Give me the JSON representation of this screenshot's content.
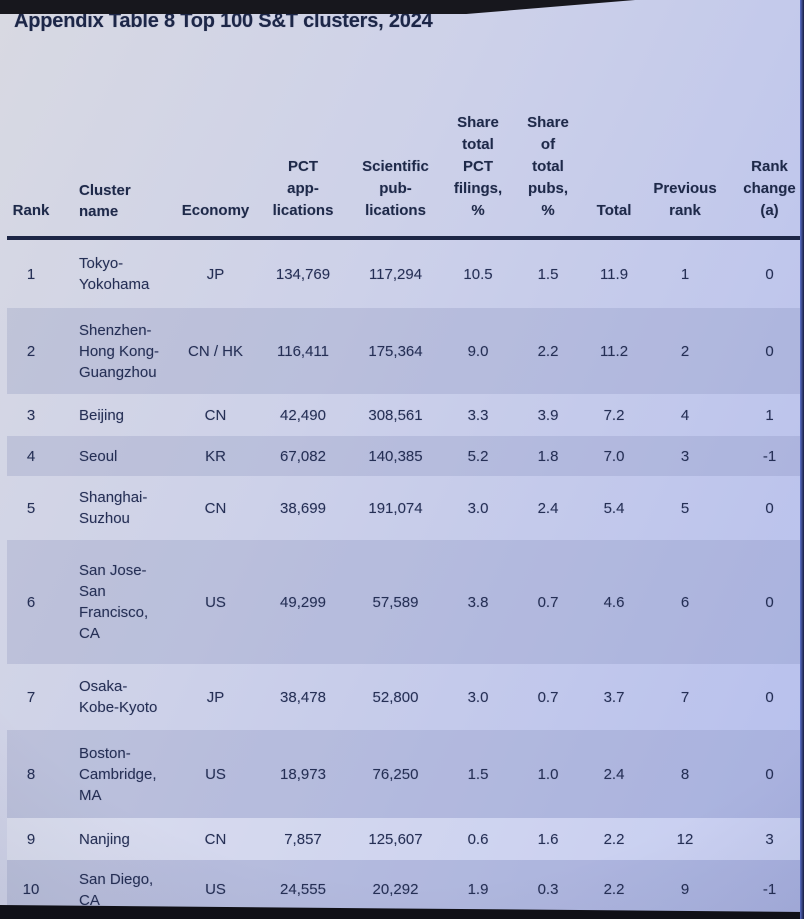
{
  "title": "Appendix Table 8 Top 100 S&T clusters, 2024",
  "table": {
    "columns": [
      {
        "key": "rank",
        "label": "Rank"
      },
      {
        "key": "cluster",
        "label": "Cluster\nname"
      },
      {
        "key": "economy",
        "label": "Economy"
      },
      {
        "key": "pct",
        "label": "PCT\napp-\nlications"
      },
      {
        "key": "pubs",
        "label": "Scientific\npub-\nlications"
      },
      {
        "key": "share_pct",
        "label": "Share\ntotal\nPCT\nfilings,\n%"
      },
      {
        "key": "share_pubs",
        "label": "Share\nof\ntotal\npubs,\n%"
      },
      {
        "key": "total",
        "label": "Total"
      },
      {
        "key": "prev",
        "label": "Previous\nrank"
      },
      {
        "key": "change",
        "label": "Rank\nchange\n(a)"
      }
    ],
    "rows": [
      {
        "rank": "1",
        "cluster": "Tokyo-\nYokohama",
        "economy": "JP",
        "pct": "134,769",
        "pubs": "117,294",
        "share_pct": "10.5",
        "share_pubs": "1.5",
        "total": "11.9",
        "prev": "1",
        "change": "0"
      },
      {
        "rank": "2",
        "cluster": "Shenzhen-\nHong Kong-\nGuangzhou",
        "economy": "CN / HK",
        "pct": "116,411",
        "pubs": "175,364",
        "share_pct": "9.0",
        "share_pubs": "2.2",
        "total": "11.2",
        "prev": "2",
        "change": "0"
      },
      {
        "rank": "3",
        "cluster": "Beijing",
        "economy": "CN",
        "pct": "42,490",
        "pubs": "308,561",
        "share_pct": "3.3",
        "share_pubs": "3.9",
        "total": "7.2",
        "prev": "4",
        "change": "1"
      },
      {
        "rank": "4",
        "cluster": "Seoul",
        "economy": "KR",
        "pct": "67,082",
        "pubs": "140,385",
        "share_pct": "5.2",
        "share_pubs": "1.8",
        "total": "7.0",
        "prev": "3",
        "change": "-1"
      },
      {
        "rank": "5",
        "cluster": "Shanghai-\nSuzhou",
        "economy": "CN",
        "pct": "38,699",
        "pubs": "191,074",
        "share_pct": "3.0",
        "share_pubs": "2.4",
        "total": "5.4",
        "prev": "5",
        "change": "0"
      },
      {
        "rank": "6",
        "cluster": "San Jose-\nSan\nFrancisco,\nCA",
        "economy": "US",
        "pct": "49,299",
        "pubs": "57,589",
        "share_pct": "3.8",
        "share_pubs": "0.7",
        "total": "4.6",
        "prev": "6",
        "change": "0"
      },
      {
        "rank": "7",
        "cluster": "Osaka-\nKobe-Kyoto",
        "economy": "JP",
        "pct": "38,478",
        "pubs": "52,800",
        "share_pct": "3.0",
        "share_pubs": "0.7",
        "total": "3.7",
        "prev": "7",
        "change": "0"
      },
      {
        "rank": "8",
        "cluster": "Boston-\nCambridge,\nMA",
        "economy": "US",
        "pct": "18,973",
        "pubs": "76,250",
        "share_pct": "1.5",
        "share_pubs": "1.0",
        "total": "2.4",
        "prev": "8",
        "change": "0"
      },
      {
        "rank": "9",
        "cluster": "Nanjing",
        "economy": "CN",
        "pct": "7,857",
        "pubs": "125,607",
        "share_pct": "0.6",
        "share_pubs": "1.6",
        "total": "2.2",
        "prev": "12",
        "change": "3"
      },
      {
        "rank": "10",
        "cluster": "San Diego,\nCA",
        "economy": "US",
        "pct": "24,555",
        "pubs": "20,292",
        "share_pct": "1.9",
        "share_pubs": "0.3",
        "total": "2.2",
        "prev": "9",
        "change": "-1"
      }
    ]
  },
  "colors": {
    "text": "#252f55",
    "title_text": "#1c2647",
    "header_rule": "#1d2646",
    "background_light": "#d8d9e2",
    "background_blue": "#b6bfee",
    "row_shade": "rgba(108,119,170,0.20)",
    "screen_bezel": "#17171d"
  }
}
